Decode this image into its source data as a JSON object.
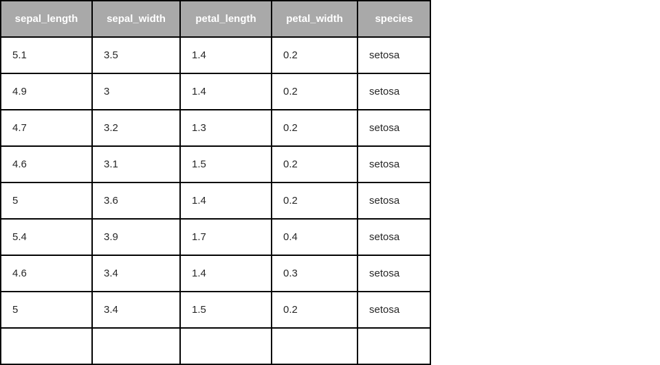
{
  "chart_data": {
    "type": "table",
    "title": "",
    "columns": [
      "sepal_length",
      "sepal_width",
      "petal_length",
      "petal_width",
      "species"
    ],
    "rows": [
      [
        "5.1",
        "3.5",
        "1.4",
        "0.2",
        "setosa"
      ],
      [
        "4.9",
        "3",
        "1.4",
        "0.2",
        "setosa"
      ],
      [
        "4.7",
        "3.2",
        "1.3",
        "0.2",
        "setosa"
      ],
      [
        "4.6",
        "3.1",
        "1.5",
        "0.2",
        "setosa"
      ],
      [
        "5",
        "3.6",
        "1.4",
        "0.2",
        "setosa"
      ],
      [
        "5.4",
        "3.9",
        "1.7",
        "0.4",
        "setosa"
      ],
      [
        "4.6",
        "3.4",
        "1.4",
        "0.3",
        "setosa"
      ],
      [
        "5",
        "3.4",
        "1.5",
        "0.2",
        "setosa"
      ]
    ],
    "layout": {
      "header_position": "top",
      "grid": "on",
      "clipped_extra_row": true
    }
  },
  "colors": {
    "header_bg": "#a9a9a9",
    "header_text": "#ffffff",
    "body_text": "#262626",
    "border": "#000000",
    "row_bg": "#ffffff",
    "page_bg": "#ffffff"
  }
}
